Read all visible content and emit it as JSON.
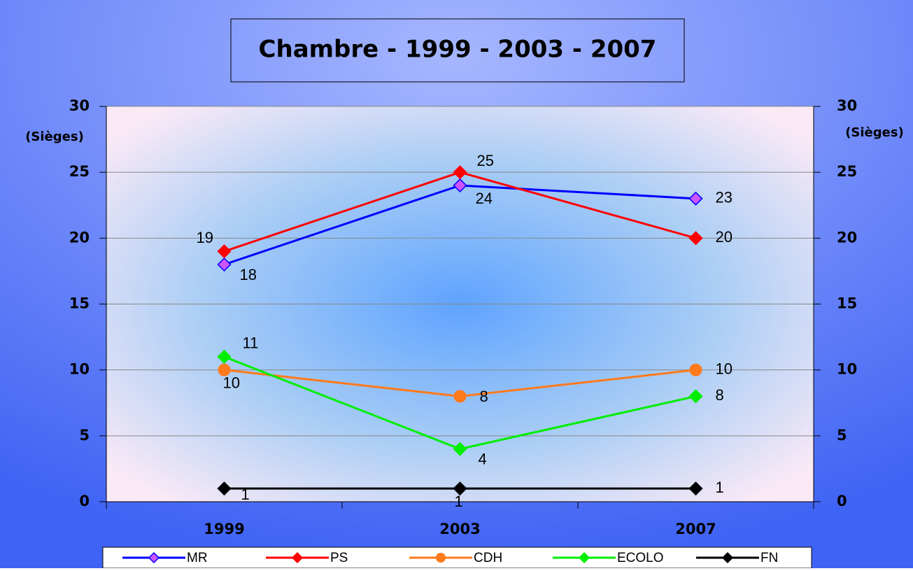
{
  "chart_data": {
    "type": "line",
    "title": "Chambre - 1999 - 2003 - 2007",
    "ylabel": "(Sièges)",
    "y2label": "(Sièges)",
    "categories": [
      "1999",
      "2003",
      "2007"
    ],
    "series": [
      {
        "name": "MR",
        "color": "#0000ff",
        "marker_color": "#cc55ff",
        "values": [
          18,
          24,
          23
        ]
      },
      {
        "name": "PS",
        "color": "#ff0000",
        "marker_color": "#ff0000",
        "values": [
          19,
          25,
          20
        ]
      },
      {
        "name": "CDH",
        "color": "#ff7a1a",
        "marker_color": "#ff7a1a",
        "values": [
          10,
          8,
          10
        ]
      },
      {
        "name": "ECOLO",
        "color": "#00ee00",
        "marker_color": "#00ee00",
        "values": [
          11,
          4,
          8
        ]
      },
      {
        "name": "FN",
        "color": "#000000",
        "marker_color": "#000000",
        "values": [
          1,
          1,
          1
        ]
      }
    ],
    "ylim": [
      0,
      30
    ],
    "yticks": [
      0,
      5,
      10,
      15,
      20,
      25,
      30
    ],
    "y2lim": [
      0,
      30
    ],
    "y2ticks": [
      0,
      5,
      10,
      15,
      20,
      25,
      30
    ],
    "grid": true,
    "legend": "bottom"
  }
}
